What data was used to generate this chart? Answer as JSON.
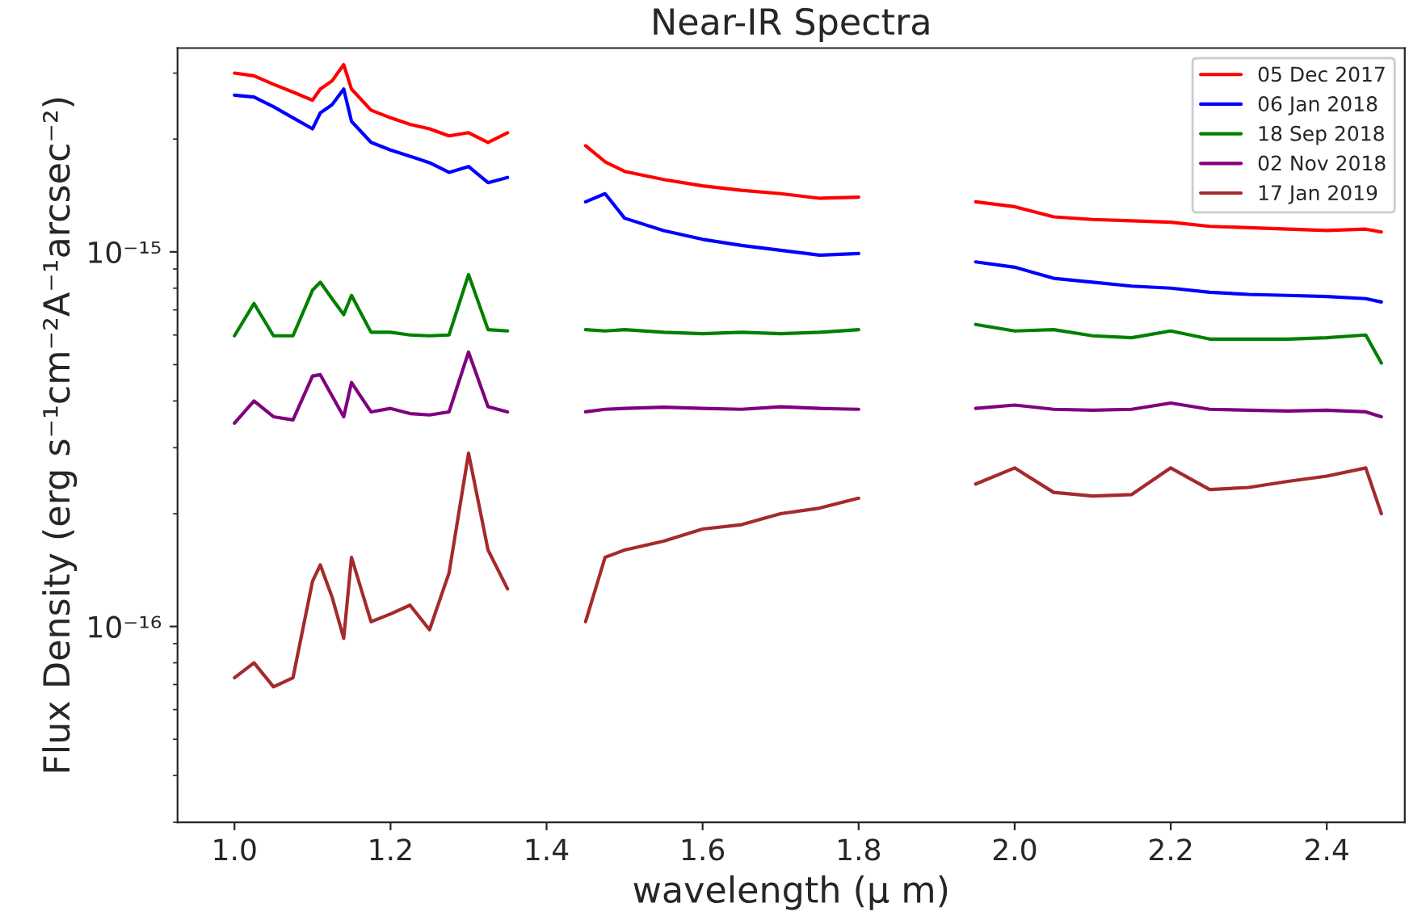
{
  "chart_data": {
    "type": "line",
    "title": "Near-IR Spectra",
    "xlabel": "wavelength (μ m)",
    "ylabel": "Flux Density (erg s⁻¹cm⁻²A⁻¹arcsec⁻²)",
    "x": [
      1.0,
      1.025,
      1.05,
      1.075,
      1.1,
      1.11,
      1.125,
      1.14,
      1.15,
      1.175,
      1.2,
      1.225,
      1.25,
      1.275,
      1.3,
      1.325,
      1.35,
      1.4,
      1.45,
      1.475,
      1.5,
      1.55,
      1.6,
      1.65,
      1.7,
      1.75,
      1.8,
      1.88,
      1.95,
      2.0,
      2.05,
      2.1,
      2.15,
      2.2,
      2.25,
      2.3,
      2.35,
      2.4,
      2.45,
      2.47
    ],
    "series": [
      {
        "name": "05 Dec 2017",
        "color": "#ff0000",
        "values": [
          3e-15,
          2.95e-15,
          2.8e-15,
          2.67e-15,
          2.54e-15,
          2.72e-15,
          2.86e-15,
          3.16e-15,
          2.72e-15,
          2.39e-15,
          2.28e-15,
          2.19e-15,
          2.13e-15,
          2.04e-15,
          2.08e-15,
          1.96e-15,
          2.08e-15,
          null,
          1.92e-15,
          1.74e-15,
          1.64e-15,
          1.56e-15,
          1.5e-15,
          1.46e-15,
          1.43e-15,
          1.39e-15,
          1.4e-15,
          null,
          1.36e-15,
          1.32e-15,
          1.24e-15,
          1.22e-15,
          1.21e-15,
          1.2e-15,
          1.17e-15,
          1.16e-15,
          1.15e-15,
          1.14e-15,
          1.15e-15,
          1.13e-15
        ]
      },
      {
        "name": "06 Jan 2018",
        "color": "#0000ff",
        "values": [
          2.62e-15,
          2.59e-15,
          2.44e-15,
          2.28e-15,
          2.13e-15,
          2.35e-15,
          2.47e-15,
          2.72e-15,
          2.23e-15,
          1.96e-15,
          1.87e-15,
          1.8e-15,
          1.73e-15,
          1.63e-15,
          1.69e-15,
          1.53e-15,
          1.58e-15,
          null,
          1.36e-15,
          1.43e-15,
          1.23e-15,
          1.14e-15,
          1.08e-15,
          1.04e-15,
          1.01e-15,
          9.8e-16,
          9.9e-16,
          null,
          9.4e-16,
          9.1e-16,
          8.5e-16,
          8.3e-16,
          8.1e-16,
          8e-16,
          7.8e-16,
          7.7e-16,
          7.65e-16,
          7.6e-16,
          7.5e-16,
          7.35e-16
        ]
      },
      {
        "name": "18 Sep 2018",
        "color": "#008000",
        "values": [
          5.97e-16,
          7.28e-16,
          5.97e-16,
          5.97e-16,
          7.9e-16,
          8.3e-16,
          7.5e-16,
          6.8e-16,
          7.65e-16,
          6.1e-16,
          6.1e-16,
          6e-16,
          5.97e-16,
          6e-16,
          8.7e-16,
          6.2e-16,
          6.15e-16,
          null,
          6.2e-16,
          6.15e-16,
          6.2e-16,
          6.1e-16,
          6.05e-16,
          6.1e-16,
          6.05e-16,
          6.1e-16,
          6.2e-16,
          null,
          6.4e-16,
          6.15e-16,
          6.2e-16,
          5.97e-16,
          5.9e-16,
          6.15e-16,
          5.85e-16,
          5.85e-16,
          5.85e-16,
          5.9e-16,
          6e-16,
          5.05e-16
        ]
      },
      {
        "name": "02 Nov 2018",
        "color": "#800080",
        "values": [
          3.49e-16,
          4e-16,
          3.63e-16,
          3.56e-16,
          4.66e-16,
          4.7e-16,
          4.13e-16,
          3.63e-16,
          4.48e-16,
          3.74e-16,
          3.82e-16,
          3.7e-16,
          3.67e-16,
          3.74e-16,
          5.4e-16,
          3.86e-16,
          3.74e-16,
          null,
          3.74e-16,
          3.8e-16,
          3.82e-16,
          3.85e-16,
          3.82e-16,
          3.8e-16,
          3.86e-16,
          3.82e-16,
          3.8e-16,
          null,
          3.82e-16,
          3.9e-16,
          3.8e-16,
          3.78e-16,
          3.8e-16,
          3.95e-16,
          3.8e-16,
          3.78e-16,
          3.76e-16,
          3.78e-16,
          3.74e-16,
          3.63e-16
        ]
      },
      {
        "name": "17 Jan 2019",
        "color": "#a52a2a",
        "values": [
          7.3e-17,
          8e-17,
          6.9e-17,
          7.3e-17,
          1.32e-16,
          1.46e-16,
          1.2e-16,
          9.3e-17,
          1.53e-16,
          1.03e-16,
          1.08e-16,
          1.14e-16,
          9.8e-17,
          1.39e-16,
          2.9e-16,
          1.6e-16,
          1.26e-16,
          null,
          1.03e-16,
          1.53e-16,
          1.6e-16,
          1.69e-16,
          1.82e-16,
          1.87e-16,
          2e-16,
          2.07e-16,
          2.2e-16,
          null,
          2.4e-16,
          2.65e-16,
          2.28e-16,
          2.23e-16,
          2.25e-16,
          2.65e-16,
          2.32e-16,
          2.35e-16,
          2.44e-16,
          2.52e-16,
          2.65e-16,
          2e-16
        ]
      }
    ],
    "log": "y",
    "xlim": [
      0.927,
      2.5
    ],
    "ylim": [
      3e-17,
      3.5e-15
    ],
    "xticks": [
      {
        "value": 1.0,
        "label": "1.0"
      },
      1.2,
      1.4,
      1.6,
      1.8,
      {
        "value": 2.0,
        "label": "2.0"
      },
      2.2,
      2.4
    ],
    "yticks": [
      {
        "value": 1e-16,
        "label": "10⁻¹⁶"
      },
      {
        "value": 1e-15,
        "label": "10⁻¹⁵"
      }
    ],
    "grid": false,
    "legend": "top right",
    "marker": "none",
    "line_style": "solid"
  }
}
